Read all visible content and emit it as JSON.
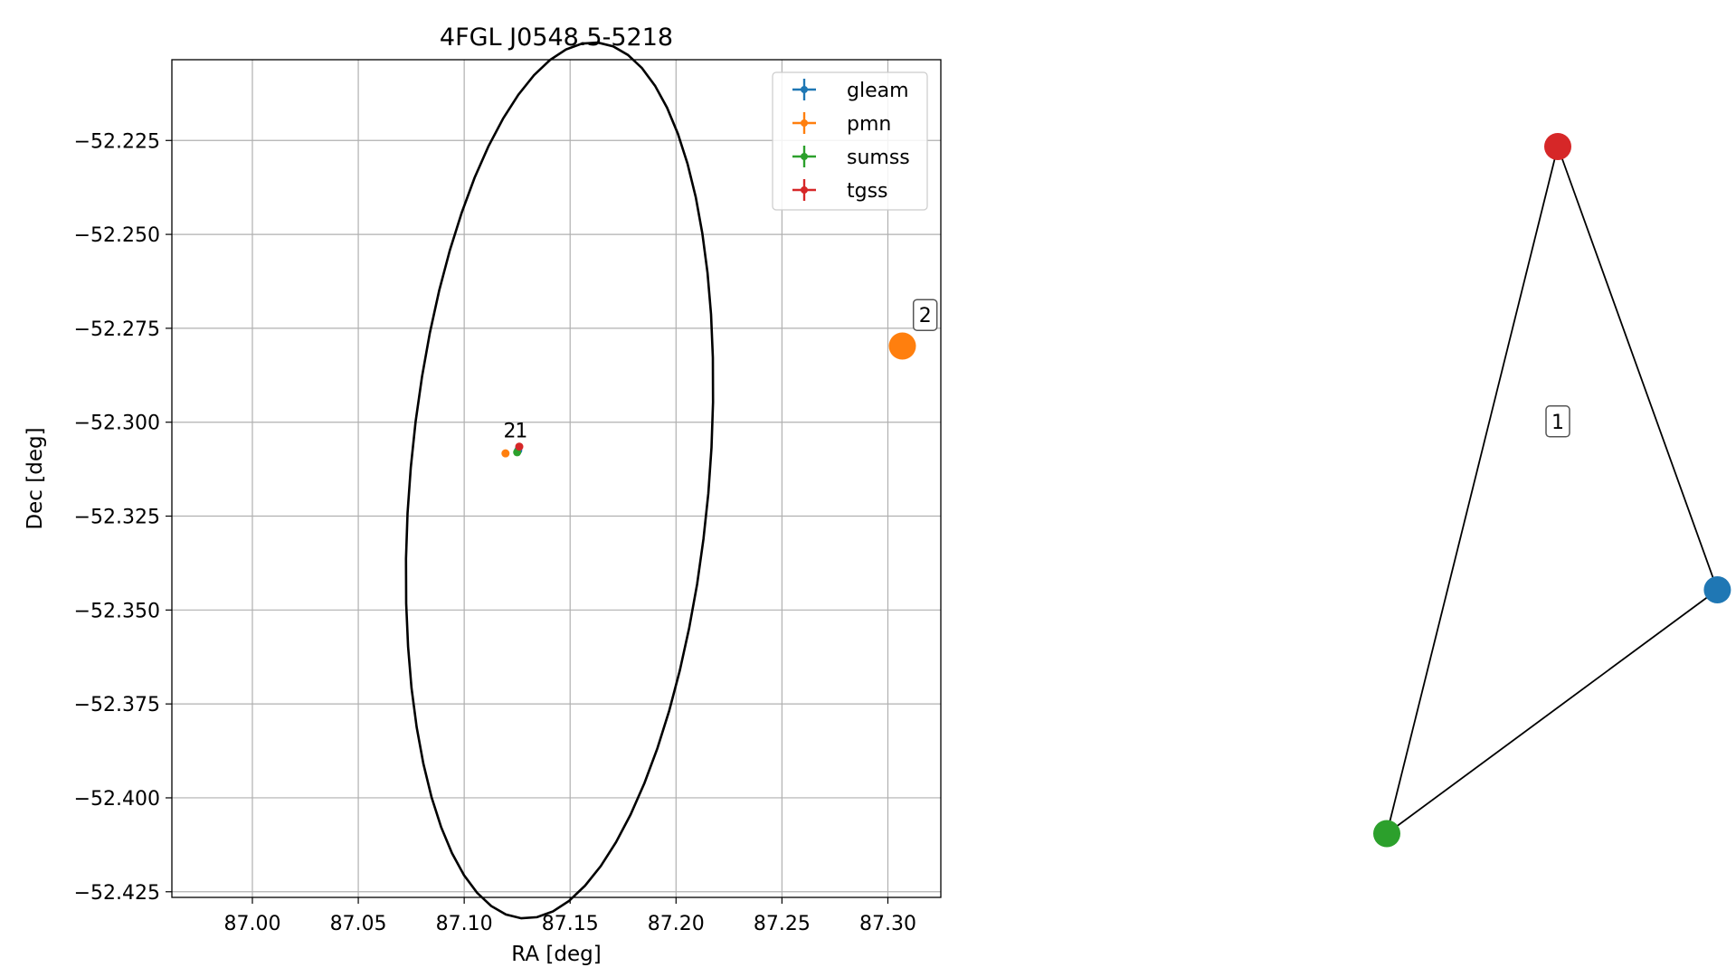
{
  "chart_data": [
    {
      "type": "scatter",
      "title": "4FGL J0548.5-5218",
      "xlabel": "RA [deg]",
      "ylabel": "Dec [deg]",
      "xlim": [
        86.962,
        87.325
      ],
      "ylim": [
        -52.4265,
        -52.2035
      ],
      "xticks": [
        87.0,
        87.05,
        87.1,
        87.15,
        87.2,
        87.25,
        87.3
      ],
      "xtick_labels": [
        "87.00",
        "87.05",
        "87.10",
        "87.15",
        "87.20",
        "87.25",
        "87.30"
      ],
      "yticks": [
        -52.225,
        -52.25,
        -52.275,
        -52.3,
        -52.325,
        -52.35,
        -52.375,
        -52.4,
        -52.425
      ],
      "ytick_labels": [
        "−52.225",
        "−52.250",
        "−52.275",
        "−52.300",
        "−52.325",
        "−52.350",
        "−52.375",
        "−52.400",
        "−52.425"
      ],
      "grid": true,
      "legend_position": "top-right",
      "legend_entries": [
        "gleam",
        "pmn",
        "sumss",
        "tgss"
      ],
      "colors": {
        "gleam": "#1f77b4",
        "pmn": "#ff7f0e",
        "sumss": "#2ca02c",
        "tgss": "#d62728"
      },
      "series": [
        {
          "name": "gleam",
          "x": [
            87.1255
          ],
          "y": [
            -52.3075
          ]
        },
        {
          "name": "pmn",
          "x": [
            87.1195
          ],
          "y": [
            -52.3083
          ]
        },
        {
          "name": "sumss",
          "x": [
            87.125
          ],
          "y": [
            -52.308
          ]
        },
        {
          "name": "tgss",
          "x": [
            87.126
          ],
          "y": [
            -52.3065
          ]
        }
      ],
      "ellipse": {
        "center_ra": 87.145,
        "center_dec": -52.3155,
        "semi_major_deg": 0.0705,
        "semi_minor_deg": 0.117,
        "angle_deg": 5
      },
      "annotations": [
        {
          "text": "2",
          "x": 87.1215,
          "y": -52.304
        },
        {
          "text": "1",
          "x": 87.127,
          "y": -52.304
        }
      ]
    },
    {
      "type": "graph",
      "nodes": [
        {
          "id": "tgss",
          "color": "#d62728",
          "x": 0.5,
          "y": 1.0
        },
        {
          "id": "gleam",
          "color": "#1f77b4",
          "x": 0.78,
          "y": 0.0
        },
        {
          "id": "sumss",
          "color": "#2ca02c",
          "x": 0.2,
          "y": -0.55
        },
        {
          "id": "pmn",
          "color": "#ff7f0e",
          "x": -0.65,
          "y": 0.55
        }
      ],
      "edges": [
        [
          "tgss",
          "gleam"
        ],
        [
          "tgss",
          "sumss"
        ],
        [
          "gleam",
          "sumss"
        ]
      ],
      "component_labels": [
        {
          "text": "1",
          "x": 0.5,
          "y": 0.38
        },
        {
          "text": "2",
          "x": -0.61,
          "y": 0.62
        }
      ]
    }
  ]
}
